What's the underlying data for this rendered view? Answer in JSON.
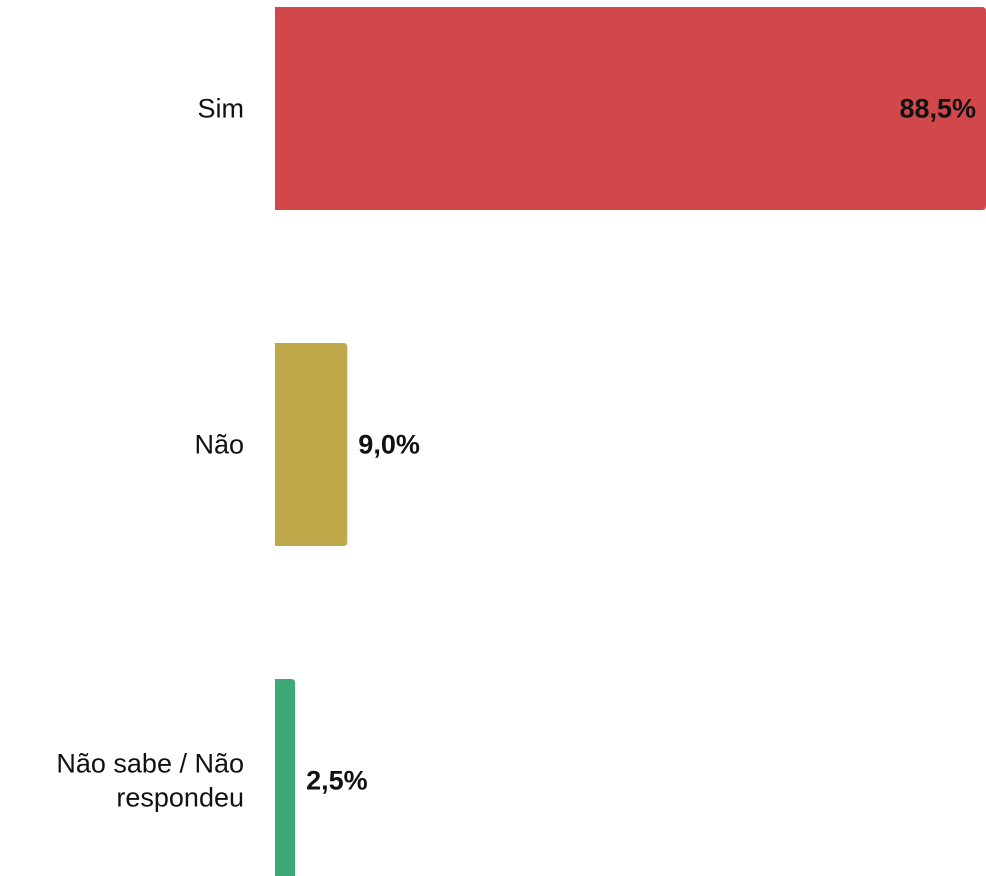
{
  "chart_data": {
    "type": "bar",
    "orientation": "horizontal",
    "categories": [
      "Sim",
      "Não",
      "Não sabe / Não respondeu"
    ],
    "category_lines": [
      [
        "Sim"
      ],
      [
        "Não"
      ],
      [
        "Não sabe / Não",
        "respondeu"
      ]
    ],
    "values": [
      88.5,
      9.0,
      2.5
    ],
    "value_labels": [
      "88,5%",
      "9,0%",
      "2,5%"
    ],
    "colors": [
      "#d1484b",
      "#bfa84a",
      "#3daa76"
    ],
    "xlim": [
      0,
      88.5
    ],
    "grid": false,
    "legend": "none",
    "title": "",
    "xlabel": "",
    "ylabel": ""
  }
}
